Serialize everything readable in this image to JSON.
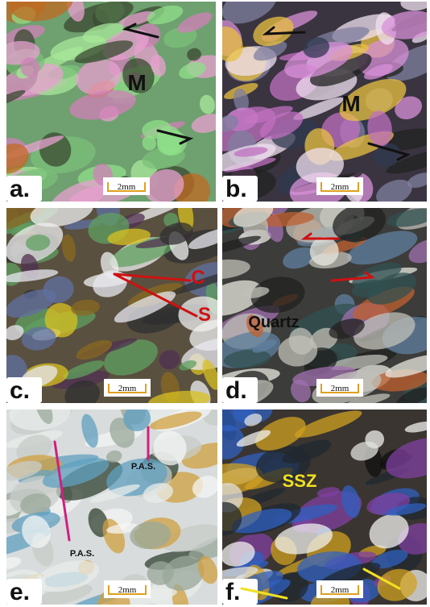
{
  "panels": [
    {
      "label": "a.",
      "scale_bar": "2mm",
      "annotations": [
        "M"
      ]
    },
    {
      "label": "b.",
      "scale_bar": "2mm",
      "annotations": [
        "M"
      ]
    },
    {
      "label": "c.",
      "scale_bar": "2mm",
      "annotations": [
        "C",
        "S"
      ]
    },
    {
      "label": "d.",
      "scale_bar": "2mm",
      "annotations": [
        "Quartz"
      ]
    },
    {
      "label": "e.",
      "scale_bar": "2mm",
      "annotations": [
        "P.A.S.",
        "P.A.S."
      ]
    },
    {
      "label": "f.",
      "scale_bar": "2mm",
      "annotations": [
        "SSZ"
      ]
    }
  ]
}
